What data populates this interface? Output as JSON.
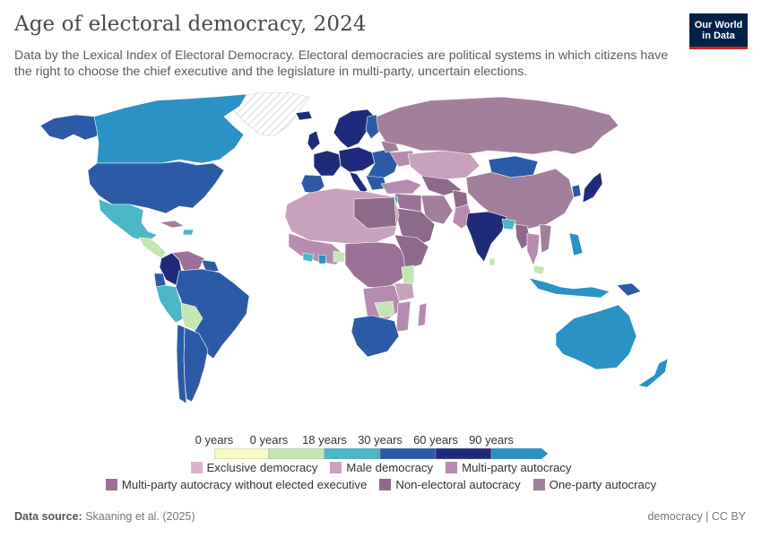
{
  "title": "Age of electoral democracy, 2024",
  "subtitle": "Data by the Lexical Index of Electoral Democracy. Electoral democracies are political systems in which citizens have the right to choose the chief executive and the legislature in multi-party, uncertain elections.",
  "logo": {
    "line1": "Our World",
    "line2": "in Data"
  },
  "legend": {
    "scale_labels": [
      "0 years",
      "0 years",
      "18 years",
      "30 years",
      "60 years",
      "90 years"
    ],
    "scale_colors": [
      "#f5f9c4",
      "#c3e6b4",
      "#4bb6c5",
      "#2b5ba6",
      "#1f2b7a",
      "#2a92c4"
    ],
    "categories_row1": [
      {
        "label": "Exclusive democracy",
        "color": "#d9b3c9"
      },
      {
        "label": "Male democracy",
        "color": "#c8a1bd"
      },
      {
        "label": "Multi-party autocracy",
        "color": "#b58cb0"
      }
    ],
    "categories_row2": [
      {
        "label": "Multi-party autocracy without elected executive",
        "color": "#9c7197"
      },
      {
        "label": "Non-electoral autocracy",
        "color": "#8e6a8a"
      },
      {
        "label": "One-party autocracy",
        "color": "#a27f9b"
      }
    ]
  },
  "footer": {
    "source_label": "Data source:",
    "source_value": "Skaaning et al. (2025)",
    "right": "democracy | CC BY"
  }
}
